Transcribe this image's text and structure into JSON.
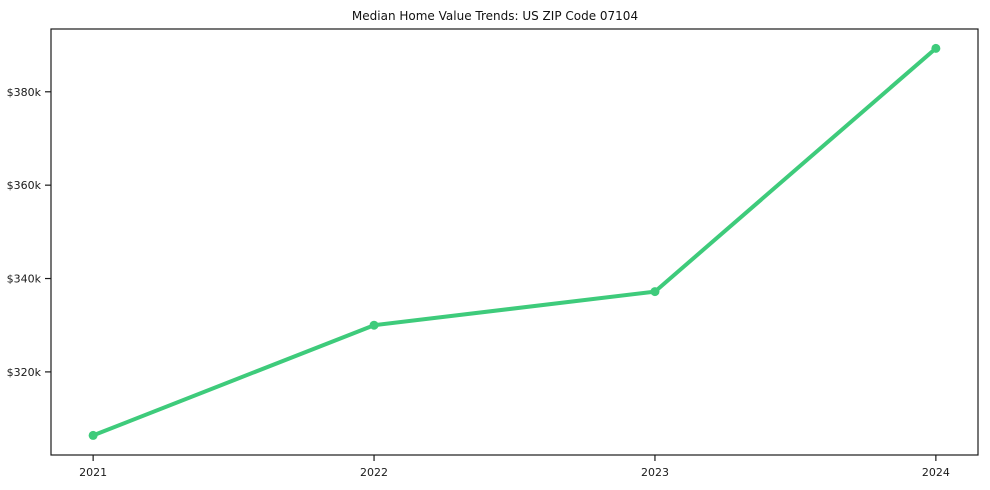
{
  "figure": {
    "title": "Median Home Value Trends: US ZIP Code 07104",
    "background_color": "#ffffff",
    "spine_color": "#1a1a1a",
    "tick_label_color": "#1a1a1a"
  },
  "chart_data": {
    "type": "line",
    "title": "Median Home Value Trends: US ZIP Code 07104",
    "x": [
      2021,
      2022,
      2023,
      2024
    ],
    "x_tick_labels": [
      "2021",
      "2022",
      "2023",
      "2024"
    ],
    "series": [
      {
        "name": "Median Home Value",
        "values": [
          306400,
          330000,
          337200,
          389300
        ]
      }
    ],
    "y_ticks": [
      320000,
      340000,
      360000,
      380000
    ],
    "y_tick_labels": [
      "$320k",
      "$340k",
      "$360k",
      "$380k"
    ],
    "xlabel": "",
    "ylabel": "",
    "xlim": [
      2020.85,
      2024.15
    ],
    "ylim": [
      302200,
      393450
    ],
    "grid": false,
    "legend": false,
    "marker": "circle",
    "style": {
      "line_color": "#3ecb7b",
      "marker_color": "#3ecb7b",
      "line_width": 4,
      "marker_radius": 4.5
    }
  }
}
